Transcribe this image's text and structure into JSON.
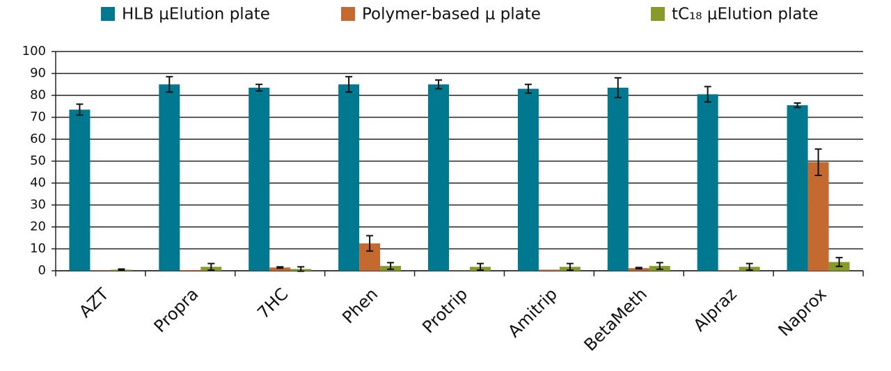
{
  "chart_data": {
    "type": "bar",
    "categories": [
      "AZT",
      "Propra",
      "7HC",
      "Phen",
      "Protrip",
      "Amitrip",
      "BetaMeth",
      "Alpraz",
      "Naprox"
    ],
    "series": [
      {
        "name": "HLB μElution plate",
        "color": "#00788f",
        "values": [
          73.5,
          85,
          83.5,
          85,
          85,
          83,
          83.5,
          80.5,
          75.5
        ],
        "errors": [
          2.5,
          3.5,
          1.5,
          3.5,
          2,
          2,
          4.5,
          3.5,
          1
        ]
      },
      {
        "name": "Polymer-based μ plate",
        "color": "#c46a31",
        "values": [
          0.2,
          0.3,
          1.5,
          12.5,
          0.1,
          0.5,
          1.2,
          0.2,
          49.5
        ],
        "errors": [
          0,
          0,
          0.3,
          3.5,
          0,
          0,
          0.3,
          0,
          6
        ]
      },
      {
        "name": "tC₁₈ μElution plate",
        "color": "#8a9a2a",
        "values": [
          0.5,
          1.8,
          0.8,
          2.2,
          1.8,
          1.8,
          2.2,
          1.8,
          4
        ],
        "errors": [
          0.3,
          1.5,
          1,
          1.5,
          1.5,
          1.5,
          1.5,
          1.5,
          2
        ]
      }
    ],
    "ylim": [
      0,
      100
    ],
    "yticks": [
      0,
      10,
      20,
      30,
      40,
      50,
      60,
      70,
      80,
      90,
      100
    ],
    "grid": true
  }
}
